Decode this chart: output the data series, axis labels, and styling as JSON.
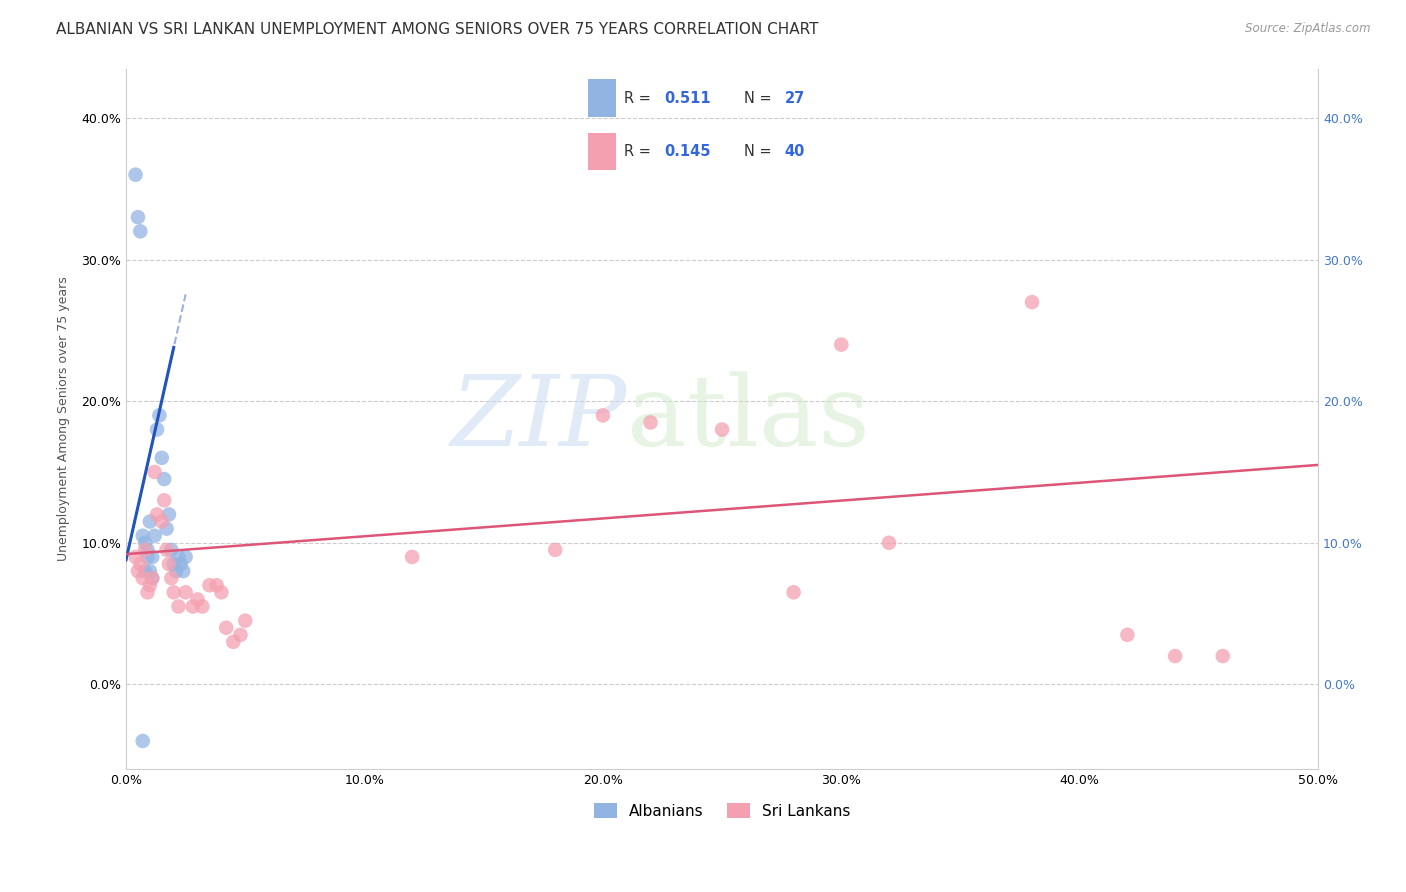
{
  "title": "ALBANIAN VS SRI LANKAN UNEMPLOYMENT AMONG SENIORS OVER 75 YEARS CORRELATION CHART",
  "source": "Source: ZipAtlas.com",
  "ylabel": "Unemployment Among Seniors over 75 years",
  "xlim": [
    0.0,
    0.5
  ],
  "ylim": [
    -0.06,
    0.435
  ],
  "albanian_R": "0.511",
  "albanian_N": "27",
  "srilankan_R": "0.145",
  "srilankan_N": "40",
  "albanian_color": "#92b4e3",
  "srilankan_color": "#f4a0b0",
  "albanian_line_color": "#2255bb",
  "srilankan_line_color": "#dd5577",
  "albanian_x": [
    0.004,
    0.005,
    0.006,
    0.007,
    0.008,
    0.009,
    0.01,
    0.011,
    0.012,
    0.013,
    0.014,
    0.015,
    0.016,
    0.017,
    0.018,
    0.019,
    0.02,
    0.021,
    0.022,
    0.023,
    0.024,
    0.025,
    0.007,
    0.008,
    0.009,
    0.01,
    0.011
  ],
  "albanian_y": [
    0.36,
    0.33,
    0.32,
    0.105,
    0.1,
    0.095,
    0.115,
    0.09,
    0.105,
    0.18,
    0.19,
    0.16,
    0.145,
    0.11,
    0.12,
    0.095,
    0.085,
    0.08,
    0.09,
    0.085,
    0.08,
    0.09,
    -0.04,
    0.08,
    0.09,
    0.08,
    0.075
  ],
  "srilankan_x": [
    0.004,
    0.005,
    0.006,
    0.007,
    0.008,
    0.009,
    0.01,
    0.011,
    0.012,
    0.013,
    0.015,
    0.016,
    0.017,
    0.018,
    0.019,
    0.02,
    0.022,
    0.025,
    0.028,
    0.03,
    0.032,
    0.035,
    0.038,
    0.04,
    0.042,
    0.045,
    0.048,
    0.05,
    0.12,
    0.18,
    0.2,
    0.22,
    0.25,
    0.28,
    0.3,
    0.32,
    0.38,
    0.42,
    0.44,
    0.46
  ],
  "srilankan_y": [
    0.09,
    0.08,
    0.085,
    0.075,
    0.095,
    0.065,
    0.07,
    0.075,
    0.15,
    0.12,
    0.115,
    0.13,
    0.095,
    0.085,
    0.075,
    0.065,
    0.055,
    0.065,
    0.055,
    0.06,
    0.055,
    0.07,
    0.07,
    0.065,
    0.04,
    0.03,
    0.035,
    0.045,
    0.09,
    0.095,
    0.19,
    0.185,
    0.18,
    0.065,
    0.24,
    0.1,
    0.27,
    0.035,
    0.02,
    0.02
  ],
  "alb_trend_solid_x0": 0.0,
  "alb_trend_solid_x1": 0.02,
  "alb_trend_intercept": 0.088,
  "alb_trend_slope": 7.5,
  "alb_trend_dash_x0": 0.0,
  "alb_trend_dash_x1": 0.025,
  "srl_trend_x0": 0.0,
  "srl_trend_x1": 0.5,
  "srl_trend_y0": 0.092,
  "srl_trend_y1": 0.155,
  "watermark_zip": "ZIP",
  "watermark_atlas": "atlas",
  "background_color": "#ffffff",
  "grid_color": "#cccccc",
  "title_fontsize": 11,
  "axis_label_fontsize": 9,
  "tick_fontsize": 9,
  "marker_size": 110,
  "legend_R_color": "#3366dd",
  "legend_N_color": "#3366dd",
  "legend_text_color": "#333333"
}
